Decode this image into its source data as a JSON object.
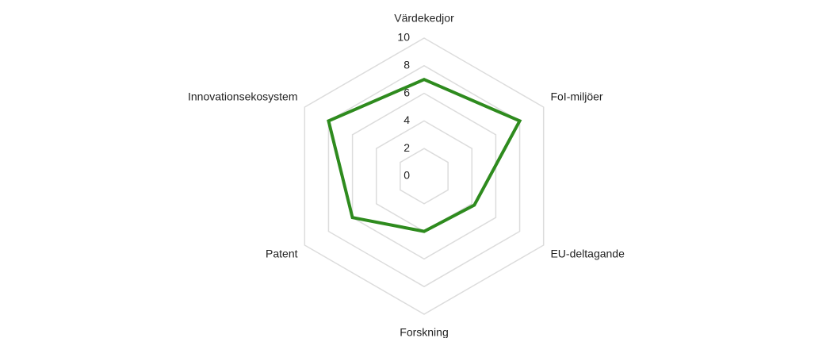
{
  "chart_data": {
    "type": "radar",
    "categories": [
      "Värdekedjor",
      "FoI-miljöer",
      "EU-deltagande",
      "Forskning",
      "Patent",
      "Innovationsekosystem"
    ],
    "series": [
      {
        "name": null,
        "color": "#2e8b1e",
        "values": [
          7,
          8,
          4.2,
          4,
          6,
          8
        ]
      }
    ],
    "ylim": [
      0,
      10
    ],
    "yticks": [
      0,
      2,
      4,
      6,
      8,
      10
    ],
    "grid": true
  }
}
